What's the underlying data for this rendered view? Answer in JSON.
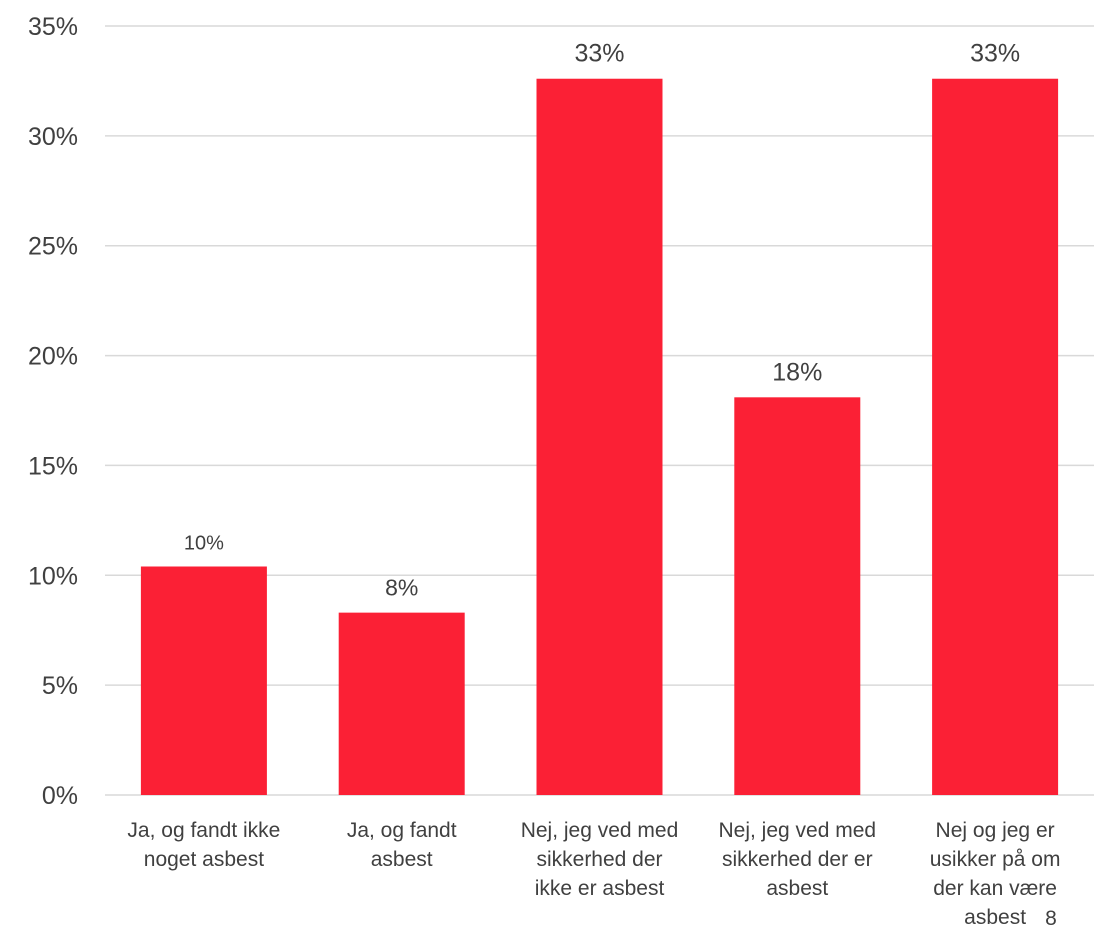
{
  "chart_data": {
    "type": "bar",
    "categories": [
      [
        "Ja, og fandt ikke",
        "noget asbest"
      ],
      [
        "Ja, og fandt",
        "asbest"
      ],
      [
        "Nej, jeg ved med",
        "sikkerhed der",
        "ikke er asbest"
      ],
      [
        "Nej, jeg ved med",
        "sikkerhed der er",
        "asbest"
      ],
      [
        "Nej og jeg er",
        "usikker på om",
        "der kan være",
        "asbest"
      ]
    ],
    "values": [
      10.4,
      8.3,
      32.6,
      18.1,
      32.6
    ],
    "data_labels": [
      "10%",
      "8%",
      "33%",
      "18%",
      "33%"
    ],
    "ylim": [
      0,
      35
    ],
    "yticks": [
      {
        "value": 0,
        "label": "0%"
      },
      {
        "value": 5,
        "label": "5%"
      },
      {
        "value": 10,
        "label": "10%"
      },
      {
        "value": 15,
        "label": "15%"
      },
      {
        "value": 20,
        "label": "20%"
      },
      {
        "value": 25,
        "label": "25%"
      },
      {
        "value": 30,
        "label": "30%"
      },
      {
        "value": 35,
        "label": "35%"
      }
    ],
    "grid": true,
    "bar_color": "#fb2035",
    "gridline_color": "#d9d9d9",
    "text_color": "#404040"
  },
  "page_number": "8"
}
